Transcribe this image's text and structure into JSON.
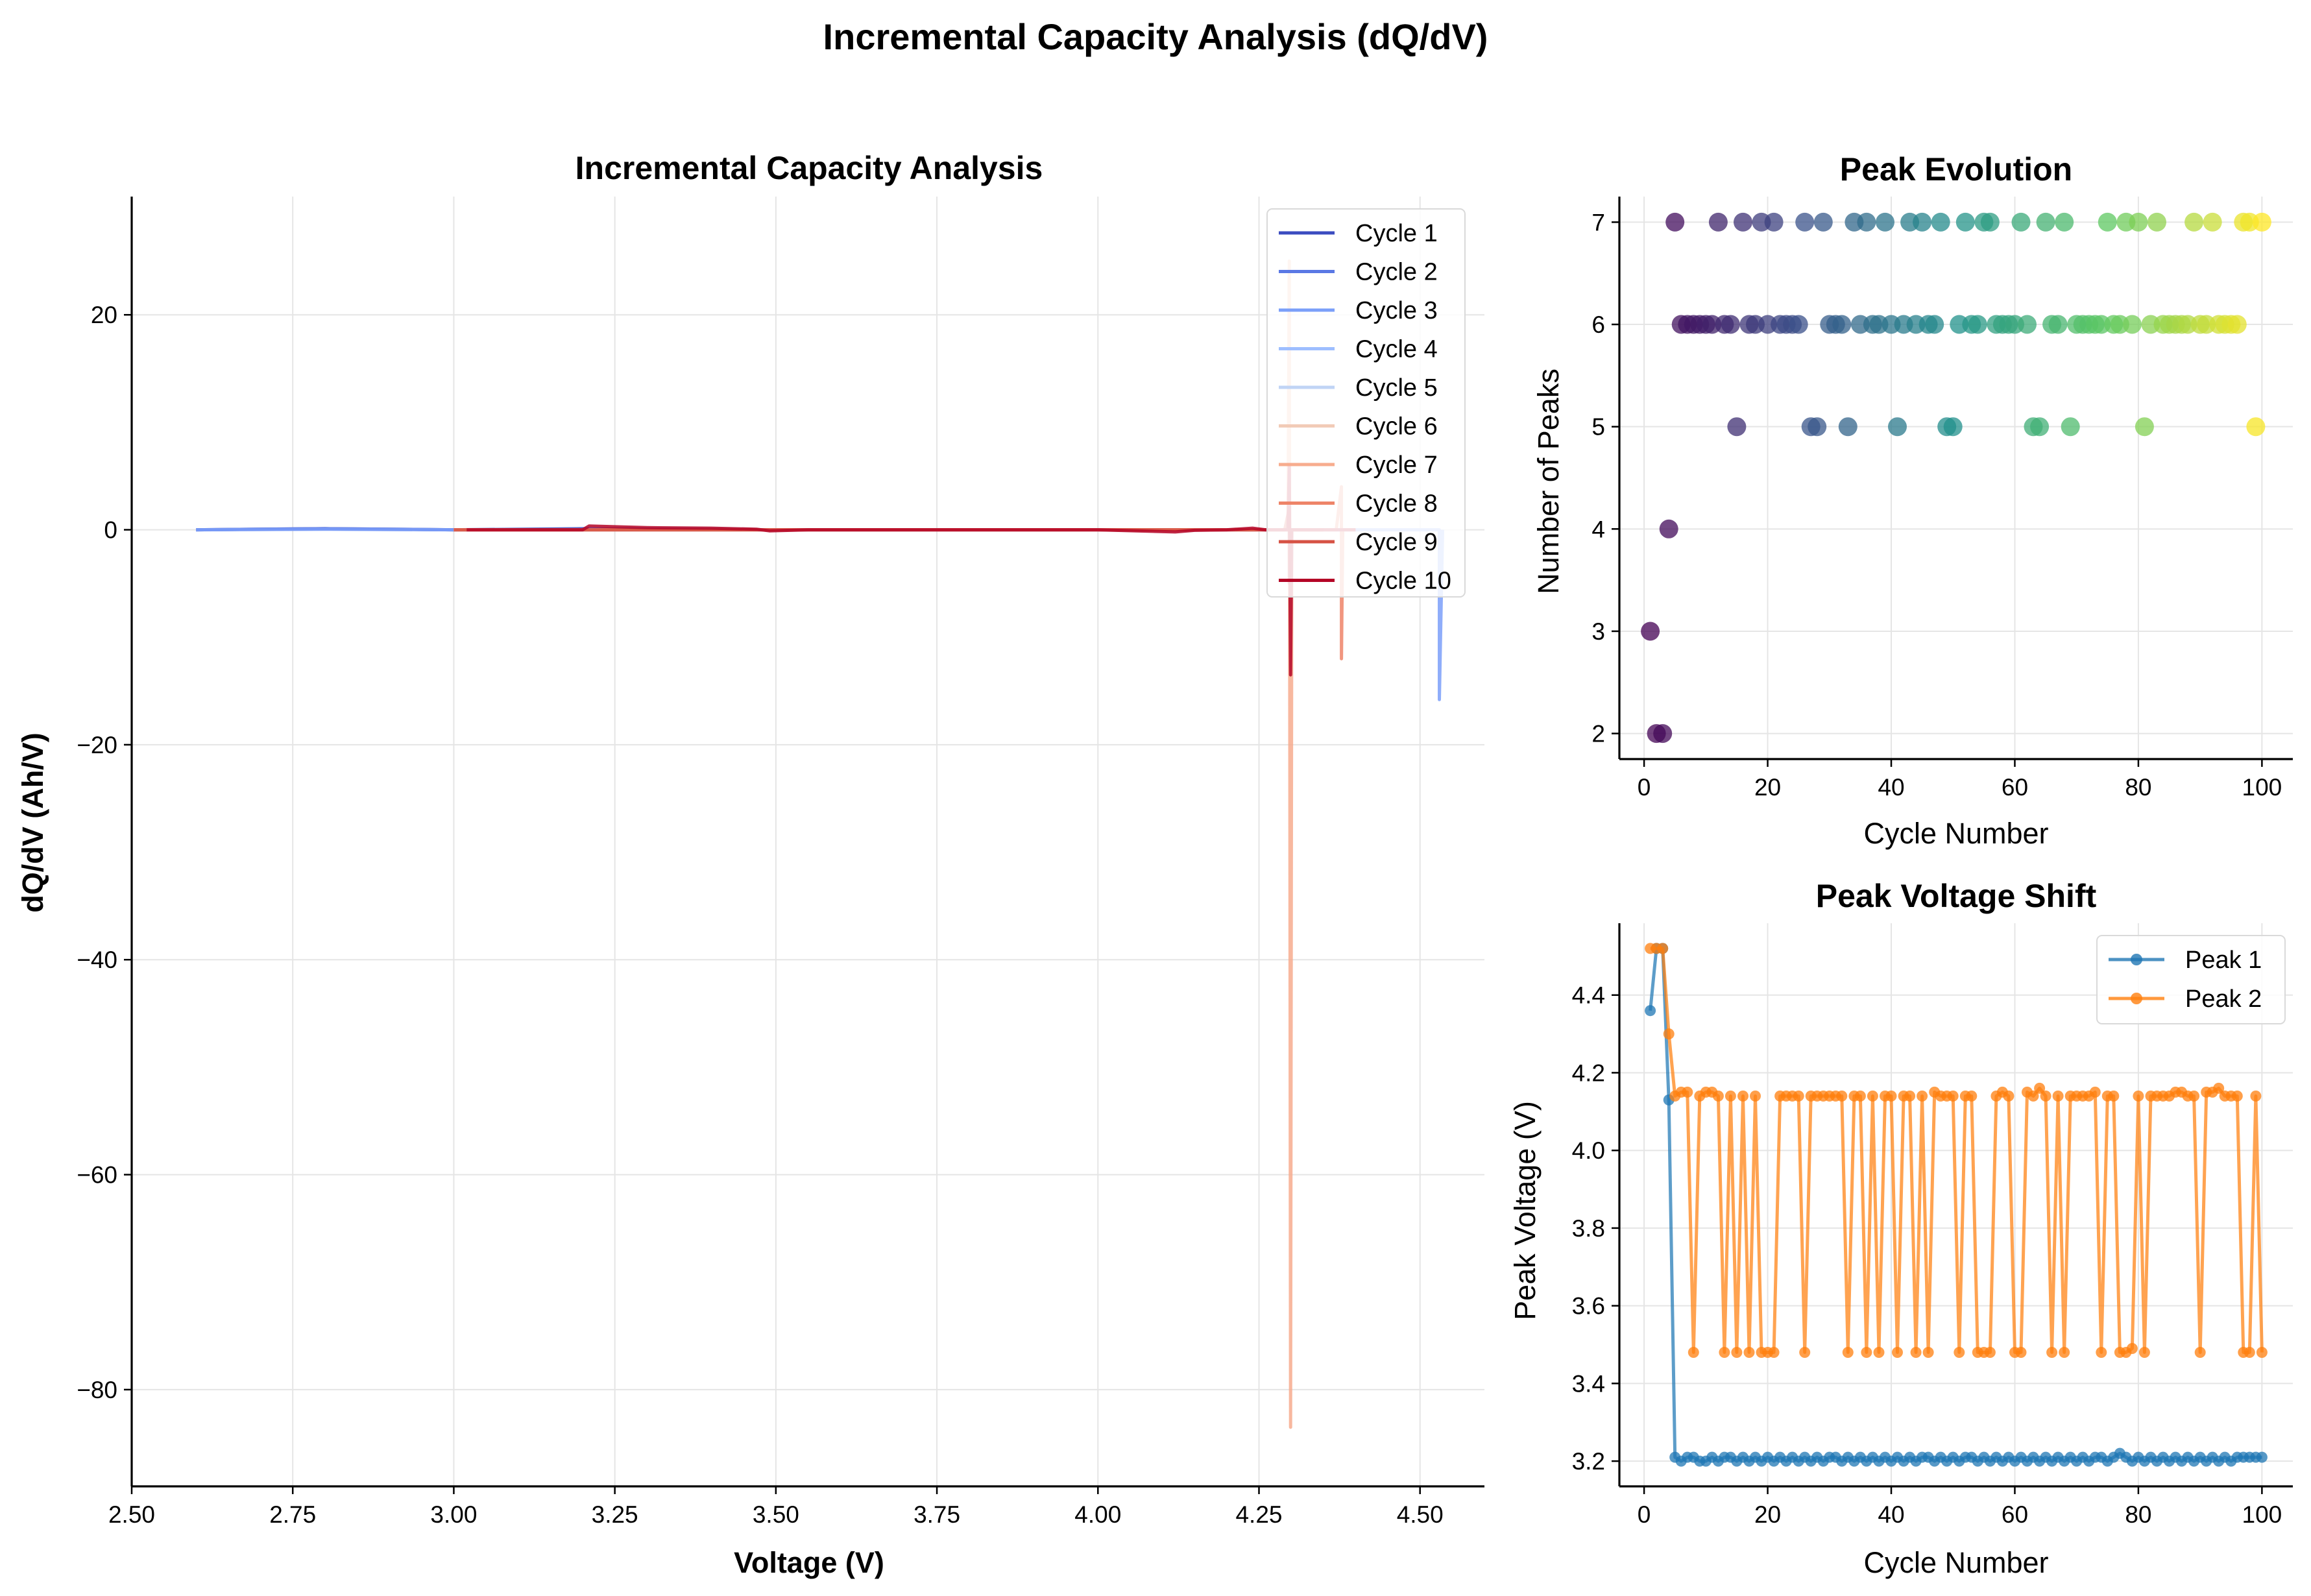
{
  "figure": {
    "title": "Incremental Capacity Analysis (dQ/dV)"
  },
  "chart_data": [
    {
      "id": "ica",
      "type": "line",
      "title": "Incremental Capacity Analysis",
      "xlabel": "Voltage (V)",
      "ylabel": "dQ/dV (Ah/V)",
      "xlim": [
        2.5,
        4.6
      ],
      "ylim": [
        -89,
        31
      ],
      "xticks": [
        "2.50",
        "2.75",
        "3.00",
        "3.25",
        "3.50",
        "3.75",
        "4.00",
        "4.25",
        "4.50"
      ],
      "yticks": [
        20,
        0,
        -20,
        -40,
        -60,
        -80
      ],
      "grid": true,
      "legend_position": "top-right",
      "series": [
        {
          "name": "Cycle 1",
          "color": "#3b4cc0",
          "x": [
            2.6,
            2.8,
            3.0,
            3.2,
            3.5,
            3.8,
            4.0,
            4.2,
            4.26
          ],
          "y": [
            0,
            0.1,
            0,
            0.1,
            0,
            0,
            0,
            0,
            0
          ]
        },
        {
          "name": "Cycle 2",
          "color": "#5a78e4",
          "x": [
            2.6,
            2.8,
            3.0,
            3.02
          ],
          "y": [
            0,
            0.1,
            0,
            0
          ]
        },
        {
          "name": "Cycle 3",
          "color": "#7b9ff9",
          "x": [
            2.6,
            2.8,
            3.0,
            3.2,
            3.5,
            4.0,
            4.5,
            4.53,
            4.53,
            4.535
          ],
          "y": [
            0,
            0.05,
            0,
            0,
            0,
            0,
            0,
            0,
            -15.8,
            0
          ]
        },
        {
          "name": "Cycle 4",
          "color": "#9ebeff",
          "x": [
            3.0,
            3.5,
            4.0,
            4.3
          ],
          "y": [
            0,
            0,
            0,
            0
          ]
        },
        {
          "name": "Cycle 5",
          "color": "#c0d4f5",
          "x": [
            3.0,
            3.5,
            4.0,
            4.3
          ],
          "y": [
            0,
            0,
            0,
            0
          ]
        },
        {
          "name": "Cycle 6",
          "color": "#f2cbb7",
          "x": [
            3.0,
            3.5,
            4.0,
            4.3
          ],
          "y": [
            0,
            0,
            0,
            0
          ]
        },
        {
          "name": "Cycle 7",
          "color": "#f7ac8e",
          "x": [
            3.0,
            3.5,
            4.0,
            4.295,
            4.297,
            4.299,
            4.301,
            4.303,
            4.35
          ],
          "y": [
            0,
            0,
            0,
            0,
            25,
            -83.5,
            0,
            0,
            0
          ]
        },
        {
          "name": "Cycle 8",
          "color": "#ee8468",
          "x": [
            3.0,
            3.5,
            4.0,
            4.37,
            4.378,
            4.378,
            4.38,
            4.4
          ],
          "y": [
            0,
            0,
            0,
            0,
            4,
            -12,
            0,
            0
          ]
        },
        {
          "name": "Cycle 9",
          "color": "#d65244",
          "x": [
            3.0,
            3.5,
            4.0,
            4.29,
            4.297,
            4.297,
            4.3,
            4.35
          ],
          "y": [
            0,
            0,
            0,
            0,
            2,
            -5,
            0,
            0
          ]
        },
        {
          "name": "Cycle 10",
          "color": "#b40426",
          "x": [
            3.02,
            3.2,
            3.21,
            3.3,
            3.4,
            3.47,
            3.49,
            3.55,
            4.0,
            4.12,
            4.15,
            4.2,
            4.24,
            4.26,
            4.28,
            4.295,
            4.297,
            4.299,
            4.301,
            4.305,
            4.35,
            4.4
          ],
          "y": [
            0,
            0,
            0.35,
            0.2,
            0.15,
            0.05,
            -0.1,
            0,
            0,
            -0.2,
            -0.05,
            0,
            0.15,
            0,
            0,
            0,
            6,
            -13.5,
            0,
            0,
            0,
            0
          ]
        }
      ]
    },
    {
      "id": "peak_evolution",
      "type": "scatter",
      "title": "Peak Evolution",
      "xlabel": "Cycle Number",
      "ylabel": "Number of Peaks",
      "xlim": [
        -4,
        105
      ],
      "ylim": [
        1.75,
        7.25
      ],
      "xticks": [
        0,
        20,
        40,
        60,
        80,
        100
      ],
      "yticks": [
        2,
        3,
        4,
        5,
        6,
        7
      ],
      "colormap": "viridis",
      "colors": [
        "#440154",
        "#3b528b",
        "#21918c",
        "#5ec962",
        "#fde725"
      ],
      "grid": true,
      "x": [
        1,
        2,
        3,
        4,
        5,
        6,
        7,
        8,
        9,
        10,
        11,
        12,
        13,
        14,
        15,
        16,
        17,
        18,
        19,
        20,
        21,
        22,
        23,
        24,
        25,
        26,
        27,
        28,
        29,
        30,
        31,
        32,
        33,
        34,
        35,
        36,
        37,
        38,
        39,
        40,
        41,
        42,
        43,
        44,
        45,
        46,
        47,
        48,
        49,
        50,
        51,
        52,
        53,
        54,
        55,
        56,
        57,
        58,
        59,
        60,
        61,
        62,
        63,
        64,
        65,
        66,
        67,
        68,
        69,
        70,
        71,
        72,
        73,
        74,
        75,
        76,
        77,
        78,
        79,
        80,
        81,
        82,
        83,
        84,
        85,
        86,
        87,
        88,
        89,
        90,
        91,
        92,
        93,
        94,
        95,
        96,
        97,
        98,
        99,
        100
      ],
      "y": [
        3,
        2,
        2,
        4,
        7,
        6,
        6,
        6,
        6,
        6,
        6,
        7,
        6,
        6,
        5,
        7,
        6,
        6,
        7,
        6,
        7,
        6,
        6,
        6,
        6,
        7,
        5,
        5,
        7,
        6,
        6,
        6,
        5,
        7,
        6,
        7,
        6,
        6,
        7,
        6,
        5,
        6,
        7,
        6,
        7,
        6,
        6,
        7,
        5,
        5,
        6,
        7,
        6,
        6,
        7,
        7,
        6,
        6,
        6,
        6,
        7,
        6,
        5,
        5,
        7,
        6,
        6,
        7,
        5,
        6,
        6,
        6,
        6,
        6,
        7,
        6,
        6,
        7,
        6,
        7,
        5,
        6,
        7,
        6,
        6,
        6,
        6,
        6,
        7,
        6,
        6,
        7,
        6,
        6,
        6,
        6,
        7,
        7,
        5,
        7
      ]
    },
    {
      "id": "peak_voltage_shift",
      "type": "line",
      "title": "Peak Voltage Shift",
      "xlabel": "Cycle Number",
      "ylabel": "Peak Voltage (V)",
      "xlim": [
        -4,
        105
      ],
      "ylim": [
        3.135,
        4.585
      ],
      "xticks": [
        0,
        20,
        40,
        60,
        80,
        100
      ],
      "yticks": [
        "3.2",
        "3.4",
        "3.6",
        "3.8",
        "4.0",
        "4.2",
        "4.4"
      ],
      "grid": true,
      "legend_position": "top-right",
      "series": [
        {
          "name": "Peak 1",
          "color": "#1f77b4",
          "x": [
            1,
            2,
            3,
            4,
            5,
            6,
            7,
            8,
            9,
            10,
            11,
            12,
            13,
            14,
            15,
            16,
            17,
            18,
            19,
            20,
            21,
            22,
            23,
            24,
            25,
            26,
            27,
            28,
            29,
            30,
            31,
            32,
            33,
            34,
            35,
            36,
            37,
            38,
            39,
            40,
            41,
            42,
            43,
            44,
            45,
            46,
            47,
            48,
            49,
            50,
            51,
            52,
            53,
            54,
            55,
            56,
            57,
            58,
            59,
            60,
            61,
            62,
            63,
            64,
            65,
            66,
            67,
            68,
            69,
            70,
            71,
            72,
            73,
            74,
            75,
            76,
            77,
            78,
            79,
            80,
            81,
            82,
            83,
            84,
            85,
            86,
            87,
            88,
            89,
            90,
            91,
            92,
            93,
            94,
            95,
            96,
            97,
            98,
            99,
            100
          ],
          "y": [
            4.36,
            4.52,
            4.52,
            4.13,
            3.21,
            3.2,
            3.21,
            3.21,
            3.2,
            3.2,
            3.21,
            3.2,
            3.21,
            3.21,
            3.2,
            3.21,
            3.2,
            3.21,
            3.2,
            3.21,
            3.2,
            3.21,
            3.2,
            3.21,
            3.2,
            3.21,
            3.2,
            3.21,
            3.2,
            3.21,
            3.21,
            3.2,
            3.21,
            3.2,
            3.21,
            3.2,
            3.21,
            3.2,
            3.21,
            3.2,
            3.21,
            3.2,
            3.21,
            3.2,
            3.21,
            3.21,
            3.2,
            3.21,
            3.2,
            3.21,
            3.2,
            3.21,
            3.21,
            3.2,
            3.21,
            3.2,
            3.21,
            3.2,
            3.21,
            3.2,
            3.21,
            3.2,
            3.21,
            3.2,
            3.21,
            3.2,
            3.21,
            3.2,
            3.21,
            3.2,
            3.21,
            3.2,
            3.21,
            3.21,
            3.2,
            3.21,
            3.22,
            3.21,
            3.2,
            3.21,
            3.2,
            3.21,
            3.2,
            3.21,
            3.2,
            3.21,
            3.2,
            3.21,
            3.2,
            3.21,
            3.2,
            3.21,
            3.2,
            3.21,
            3.2,
            3.21,
            3.21,
            3.21,
            3.21,
            3.21
          ]
        },
        {
          "name": "Peak 2",
          "color": "#ff7f0e",
          "x": [
            1,
            2,
            3,
            4,
            5,
            6,
            7,
            8,
            9,
            10,
            11,
            12,
            13,
            14,
            15,
            16,
            17,
            18,
            19,
            20,
            21,
            22,
            23,
            24,
            25,
            26,
            27,
            28,
            29,
            30,
            31,
            32,
            33,
            34,
            35,
            36,
            37,
            38,
            39,
            40,
            41,
            42,
            43,
            44,
            45,
            46,
            47,
            48,
            49,
            50,
            51,
            52,
            53,
            54,
            55,
            56,
            57,
            58,
            59,
            60,
            61,
            62,
            63,
            64,
            65,
            66,
            67,
            68,
            69,
            70,
            71,
            72,
            73,
            74,
            75,
            76,
            77,
            78,
            79,
            80,
            81,
            82,
            83,
            84,
            85,
            86,
            87,
            88,
            89,
            90,
            91,
            92,
            93,
            94,
            95,
            96,
            97,
            98,
            99,
            100
          ],
          "y": [
            4.52,
            4.52,
            4.52,
            4.3,
            4.14,
            4.15,
            4.15,
            3.48,
            4.14,
            4.15,
            4.15,
            4.14,
            3.48,
            4.14,
            3.48,
            4.14,
            3.48,
            4.14,
            3.48,
            3.48,
            3.48,
            4.14,
            4.14,
            4.14,
            4.14,
            3.48,
            4.14,
            4.14,
            4.14,
            4.14,
            4.14,
            4.14,
            3.48,
            4.14,
            4.14,
            3.48,
            4.14,
            3.48,
            4.14,
            4.14,
            3.48,
            4.14,
            4.14,
            3.48,
            4.14,
            3.48,
            4.15,
            4.14,
            4.14,
            4.14,
            3.48,
            4.14,
            4.14,
            3.48,
            3.48,
            3.48,
            4.14,
            4.15,
            4.14,
            3.48,
            3.48,
            4.15,
            4.14,
            4.16,
            4.14,
            3.48,
            4.14,
            3.48,
            4.14,
            4.14,
            4.14,
            4.14,
            4.15,
            3.48,
            4.14,
            4.14,
            3.48,
            3.48,
            3.49,
            4.14,
            3.48,
            4.14,
            4.14,
            4.14,
            4.14,
            4.15,
            4.15,
            4.14,
            4.14,
            3.48,
            4.15,
            4.15,
            4.16,
            4.14,
            4.14,
            4.14,
            3.48,
            3.48,
            4.14,
            3.48
          ]
        }
      ]
    }
  ]
}
